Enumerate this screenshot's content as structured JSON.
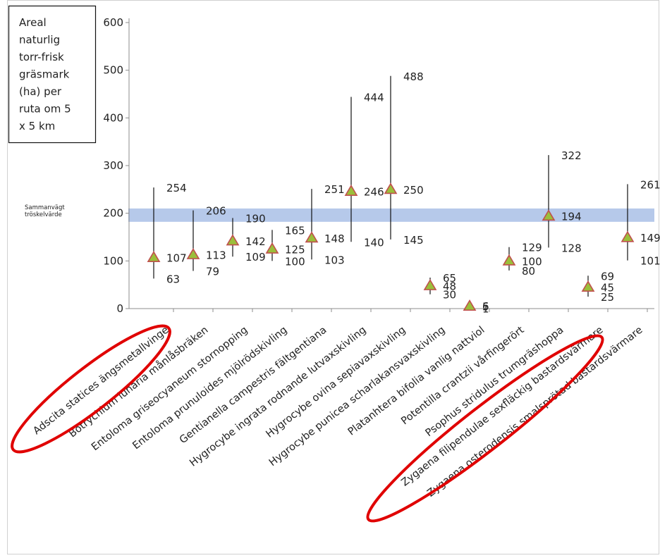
{
  "chart_data": {
    "type": "scatter",
    "title": "",
    "xlabel": "",
    "ylabel": "",
    "ylim": [
      0,
      600
    ],
    "yticks": [
      0,
      100,
      200,
      300,
      400,
      500,
      600
    ],
    "grid": false,
    "legend": "none",
    "note_box_lines": [
      "Areal",
      "naturlig",
      "torr-frisk",
      "gräsmark",
      "(ha) per",
      "ruta om 5",
      "x 5 km"
    ],
    "threshold": {
      "label_lines": [
        "Sammanvägt",
        "tröskelvärde"
      ],
      "low": 182,
      "high": 210,
      "color": "#9db7e3"
    },
    "marker_color": "#9bbf3a",
    "marker_edge": "#c0504d",
    "highlight_color": "#e00000",
    "categories": [
      "Adscita statices ängsmetallvinge",
      "Botrychium lunaria månlåsbräken",
      "Entoloma griseocyaneum stornopping",
      "Entoloma prunuloides mjölrödskivling",
      "Gentianella campestris fältgentiana",
      "Hygrocybe ingrata rodnande lutvaxskivling",
      "Hygrocybe ovina sepiavaxskivling",
      "Hygrocybe punicea scharlakansvaxskivling",
      "Platanhtera bifolia vanlig nattviol",
      "Potentilla crantzii vårfingerört",
      "Psophus stridulus trumgräshoppa",
      "Zygaena filipendulae sexfläckig bastardsvärmare",
      "Zygaena osterodensis smalsprötad bastardsvärmare"
    ],
    "points": [
      {
        "low": 63,
        "value": 107,
        "high": 254,
        "low_label": "63",
        "value_label": "107",
        "high_label": "254"
      },
      {
        "low": 79,
        "value": 113,
        "high": 206,
        "low_label": "79",
        "value_label": "113",
        "high_label": "206"
      },
      {
        "low": 109,
        "value": 142,
        "high": 190,
        "low_label": "109",
        "value_label": "142",
        "high_label": "190"
      },
      {
        "low": 100,
        "value": 125,
        "high": 165,
        "low_label": "100",
        "value_label": "125",
        "high_label": "165"
      },
      {
        "low": 103,
        "value": 148,
        "high": 251,
        "low_label": "103",
        "value_label": "148",
        "high_label": "251"
      },
      {
        "low": 140,
        "value": 246,
        "high": 444,
        "low_label": "140",
        "value_label": "246",
        "high_label": "444"
      },
      {
        "low": 145,
        "value": 250,
        "high": 488,
        "low_label": "145",
        "value_label": "250",
        "high_label": "488"
      },
      {
        "low": 30,
        "value": 48,
        "high": 65,
        "low_label": "30",
        "value_label": "48",
        "high_label": "65"
      },
      {
        "low": 1,
        "value": 5,
        "high": 6,
        "low_label": "1",
        "value_label": "5",
        "high_label": "6"
      },
      {
        "low": 80,
        "value": 100,
        "high": 129,
        "low_label": "80",
        "value_label": "100",
        "high_label": "129"
      },
      {
        "low": 128,
        "value": 194,
        "high": 322,
        "low_label": "128",
        "value_label": "194",
        "high_label": "322"
      },
      {
        "low": 25,
        "value": 45,
        "high": 69,
        "low_label": "25",
        "value_label": "45",
        "high_label": "69"
      },
      {
        "low": 101,
        "value": 149,
        "high": 261,
        "low_label": "101",
        "value_label": "149",
        "high_label": "261"
      }
    ],
    "highlighted_categories": [
      0,
      11
    ]
  }
}
